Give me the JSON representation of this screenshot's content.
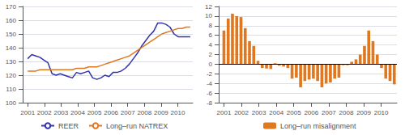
{
  "chart_data": [
    {
      "type": "line",
      "x": [
        2001,
        2001.24375,
        2001.4875,
        2001.73125,
        2001.975,
        2002.21875,
        2002.4625,
        2002.70625,
        2002.95,
        2003.19375,
        2003.4375,
        2003.68125,
        2003.925,
        2004.16875,
        2004.4125,
        2004.65625,
        2004.9,
        2005.14375,
        2005.3875,
        2005.63125,
        2005.875,
        2006.11875,
        2006.3625,
        2006.60625,
        2006.85,
        2007.09375,
        2007.3375,
        2007.58125,
        2007.825,
        2008.06875,
        2008.3125,
        2008.55625,
        2008.8,
        2009.04375,
        2009.2875,
        2009.53125,
        2009.775,
        2010.01875,
        2010.2625,
        2010.50625,
        2010.75
      ],
      "series": [
        {
          "name": "REER",
          "color": "#3333aa",
          "values": [
            132,
            135,
            134,
            133,
            131,
            129,
            121,
            120,
            121,
            120,
            119,
            118,
            122,
            121,
            122,
            123,
            118,
            117,
            118,
            120,
            119,
            122,
            122,
            123,
            125,
            128,
            132,
            136,
            141,
            145,
            149,
            152,
            158,
            158,
            157,
            155,
            150,
            148,
            148,
            148,
            148
          ]
        },
        {
          "name": "Long–run NATREX",
          "color": "#e07820",
          "values": [
            123,
            123,
            123,
            124,
            124,
            124,
            124,
            124,
            124,
            124,
            124,
            124,
            125,
            125,
            125,
            126,
            126,
            126,
            127,
            128,
            129,
            130,
            131,
            132,
            133,
            134,
            136,
            138,
            140,
            142,
            144,
            146,
            148,
            150,
            151,
            152,
            153,
            154,
            154,
            155,
            155
          ]
        }
      ],
      "xlim": [
        2000.7,
        2010.9
      ],
      "xticks": [
        2001,
        2002,
        2003,
        2004,
        2005,
        2006,
        2007,
        2008,
        2009,
        2010
      ],
      "ylim": [
        100,
        170
      ],
      "yticks": [
        100,
        110,
        120,
        130,
        140,
        150,
        160,
        170
      ],
      "grid": true,
      "legend": "bottom"
    },
    {
      "type": "bar",
      "x": [
        2001,
        2001.24375,
        2001.4875,
        2001.73125,
        2001.975,
        2002.21875,
        2002.4625,
        2002.70625,
        2002.95,
        2003.19375,
        2003.4375,
        2003.68125,
        2003.925,
        2004.16875,
        2004.4125,
        2004.65625,
        2004.9,
        2005.14375,
        2005.3875,
        2005.63125,
        2005.875,
        2006.11875,
        2006.3625,
        2006.60625,
        2006.85,
        2007.09375,
        2007.3375,
        2007.58125,
        2007.825,
        2008.06875,
        2008.3125,
        2008.55625,
        2008.8,
        2009.04375,
        2009.2875,
        2009.53125,
        2009.775,
        2010.01875,
        2010.2625,
        2010.50625,
        2010.75
      ],
      "series": [
        {
          "name": "Long–run misalignment",
          "color": "#e07820",
          "values": [
            7,
            9.5,
            10.5,
            10,
            9.8,
            7.5,
            4.8,
            3.8,
            0.7,
            -0.8,
            -0.9,
            -1.0,
            0.2,
            -0.3,
            -0.5,
            -0.8,
            -3.0,
            -2.8,
            -4.8,
            -3.5,
            -3.2,
            -3.0,
            -3.5,
            -4.8,
            -4.0,
            -3.8,
            -3.0,
            -2.8,
            -0.2,
            -0.2,
            0.5,
            1.0,
            2.0,
            3.8,
            7.0,
            4.8,
            2.0,
            -0.8,
            -3.0,
            -3.5,
            -4.2
          ]
        }
      ],
      "xlim": [
        2000.7,
        2010.9
      ],
      "xticks": [
        2001,
        2002,
        2003,
        2004,
        2005,
        2006,
        2007,
        2008,
        2009,
        2010
      ],
      "ylim": [
        -8,
        12
      ],
      "yticks": [
        -8,
        -6,
        -4,
        -2,
        0,
        2,
        4,
        6,
        8,
        10,
        12
      ],
      "grid": true,
      "legend": "bottom"
    }
  ]
}
